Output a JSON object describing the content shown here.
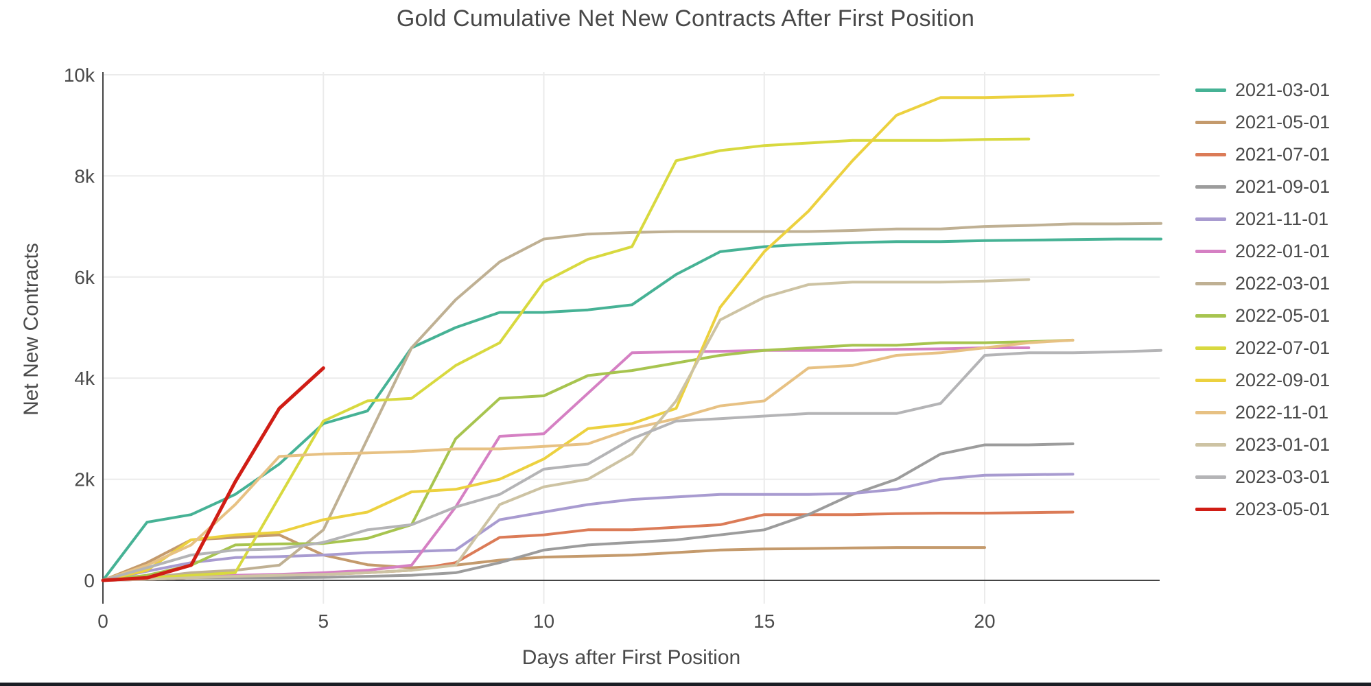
{
  "page": {
    "background_color": "#ffffff",
    "bottom_bar_color": "#1a1d24",
    "text_color": "#4a4a4a",
    "gridline_color": "#ebebeb",
    "axis_line_color": "#444444"
  },
  "chart_data": {
    "type": "line",
    "title": "Gold Cumulative Net New Contracts After First Position",
    "xlabel": "Days after First Position",
    "ylabel": "Net New Contracts",
    "x_tick_labels": [
      "0",
      "5",
      "10",
      "15",
      "20"
    ],
    "x_tick_values": [
      0,
      5,
      10,
      15,
      20
    ],
    "y_tick_labels": [
      "0",
      "2k",
      "4k",
      "6k",
      "8k",
      "10k"
    ],
    "y_tick_values": [
      0,
      2000,
      4000,
      6000,
      8000,
      10000
    ],
    "xlim": [
      0,
      24.3
    ],
    "ylim": [
      0,
      10000
    ],
    "grid": true,
    "legend_position": "right",
    "x_unit": "days_after_first_position_0_1_2_etc",
    "series": [
      {
        "name": "2021-03-01",
        "color": "#46b295",
        "values": [
          0,
          1150,
          1300,
          1700,
          2300,
          3100,
          3350,
          4600,
          5000,
          5300,
          5300,
          5350,
          5450,
          6050,
          6500,
          6600,
          6650,
          6680,
          6700,
          6700,
          6720,
          6730,
          6740,
          6750,
          6750
        ]
      },
      {
        "name": "2021-05-01",
        "color": "#c49a6c",
        "values": [
          0,
          350,
          800,
          850,
          900,
          500,
          310,
          250,
          300,
          400,
          460,
          480,
          500,
          550,
          600,
          620,
          630,
          640,
          650,
          650,
          650
        ]
      },
      {
        "name": "2021-07-01",
        "color": "#db7b57",
        "values": [
          0,
          20,
          50,
          70,
          100,
          120,
          150,
          200,
          350,
          850,
          900,
          1000,
          1000,
          1050,
          1100,
          1300,
          1300,
          1300,
          1320,
          1330,
          1330,
          1340,
          1350
        ]
      },
      {
        "name": "2021-09-01",
        "color": "#9c9c9c",
        "values": [
          0,
          20,
          50,
          50,
          50,
          60,
          80,
          100,
          150,
          350,
          600,
          700,
          750,
          800,
          900,
          1000,
          1300,
          1700,
          2000,
          2500,
          2680,
          2680,
          2700
        ]
      },
      {
        "name": "2021-11-01",
        "color": "#a89bd0",
        "values": [
          0,
          180,
          350,
          450,
          470,
          500,
          550,
          570,
          600,
          1200,
          1350,
          1500,
          1600,
          1650,
          1700,
          1700,
          1700,
          1720,
          1800,
          2000,
          2080,
          2090,
          2100
        ]
      },
      {
        "name": "2022-01-01",
        "color": "#d580c3",
        "values": [
          0,
          20,
          50,
          100,
          120,
          150,
          200,
          300,
          1450,
          2850,
          2900,
          3700,
          4500,
          4520,
          4530,
          4550,
          4550,
          4550,
          4570,
          4580,
          4600,
          4600
        ]
      },
      {
        "name": "2022-03-01",
        "color": "#bfb093",
        "values": [
          0,
          50,
          150,
          200,
          300,
          1000,
          2800,
          4600,
          5550,
          6300,
          6750,
          6850,
          6880,
          6900,
          6900,
          6900,
          6900,
          6920,
          6950,
          6950,
          7000,
          7020,
          7050,
          7050,
          7060
        ]
      },
      {
        "name": "2022-05-01",
        "color": "#a7c44f",
        "values": [
          0,
          100,
          300,
          700,
          720,
          730,
          830,
          1100,
          2800,
          3600,
          3650,
          4050,
          4150,
          4300,
          4450,
          4550,
          4600,
          4650,
          4650,
          4700,
          4700,
          4720,
          4750
        ]
      },
      {
        "name": "2022-07-01",
        "color": "#d8d93f",
        "values": [
          0,
          50,
          100,
          150,
          1650,
          3150,
          3550,
          3600,
          4250,
          4700,
          5900,
          6350,
          6600,
          8300,
          8500,
          8600,
          8650,
          8700,
          8700,
          8700,
          8720,
          8730
        ]
      },
      {
        "name": "2022-09-01",
        "color": "#ecd13f",
        "values": [
          0,
          200,
          800,
          900,
          950,
          1200,
          1350,
          1750,
          1800,
          2000,
          2400,
          3000,
          3100,
          3400,
          5400,
          6500,
          7300,
          8300,
          9200,
          9550,
          9550,
          9570,
          9600
        ]
      },
      {
        "name": "2022-11-01",
        "color": "#e7c183",
        "values": [
          0,
          300,
          700,
          1500,
          2450,
          2500,
          2520,
          2550,
          2600,
          2600,
          2650,
          2700,
          3000,
          3200,
          3450,
          3550,
          4200,
          4250,
          4450,
          4500,
          4600,
          4700,
          4750
        ]
      },
      {
        "name": "2023-01-01",
        "color": "#cdc3a3",
        "values": [
          0,
          20,
          50,
          80,
          100,
          120,
          150,
          200,
          300,
          1500,
          1850,
          2000,
          2500,
          3550,
          5150,
          5600,
          5850,
          5900,
          5900,
          5900,
          5920,
          5950
        ]
      },
      {
        "name": "2023-03-01",
        "color": "#b4b4b6",
        "values": [
          0,
          250,
          500,
          600,
          620,
          750,
          1000,
          1100,
          1450,
          1700,
          2200,
          2300,
          2800,
          3150,
          3200,
          3250,
          3300,
          3300,
          3300,
          3500,
          4450,
          4500,
          4500,
          4520,
          4550
        ]
      },
      {
        "name": "2023-05-01",
        "color": "#d01d15",
        "values": [
          0,
          50,
          300,
          1950,
          3400,
          4200
        ]
      }
    ]
  }
}
